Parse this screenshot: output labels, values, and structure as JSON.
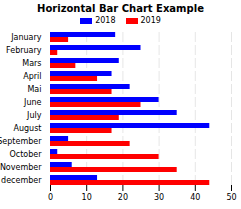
{
  "chart_data": {
    "type": "bar",
    "orientation": "horizontal",
    "title": "Horizontal Bar Chart Example",
    "categories": [
      "January",
      "February",
      "Mars",
      "April",
      "Mai",
      "June",
      "July",
      "August",
      "September",
      "October",
      "November",
      "december"
    ],
    "series": [
      {
        "name": "2018",
        "color": "#0000ff",
        "values": [
          18,
          25,
          19,
          17,
          22,
          30,
          35,
          44,
          5,
          2,
          6,
          13
        ]
      },
      {
        "name": "2019",
        "color": "#ff0000",
        "values": [
          5,
          2,
          7,
          13,
          17,
          25,
          19,
          17,
          22,
          30,
          35,
          44
        ]
      }
    ],
    "xlim": [
      0,
      50
    ],
    "xticks": [
      0,
      10,
      20,
      30,
      40,
      50
    ],
    "grid": true,
    "legend": "top"
  }
}
